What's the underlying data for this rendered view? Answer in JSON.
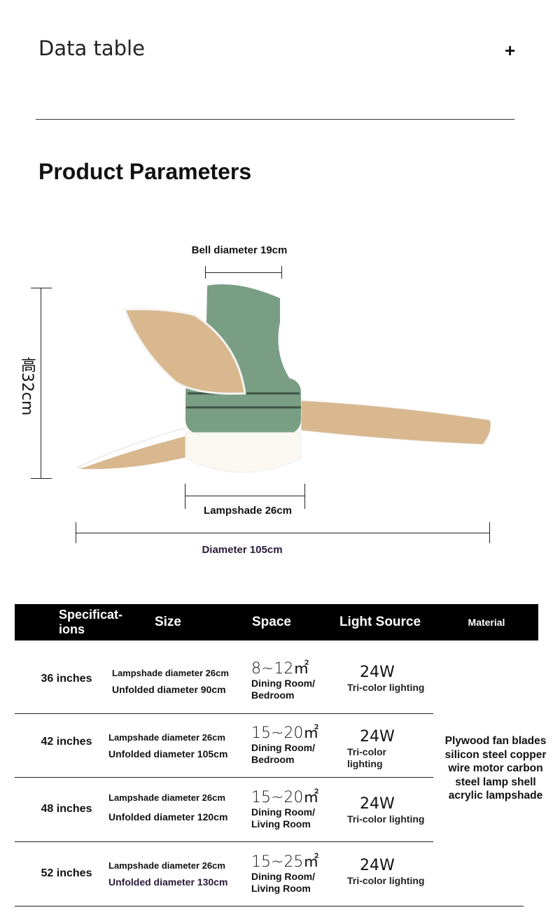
{
  "header": {
    "title": "Data table",
    "expand_icon": "plus-icon"
  },
  "section": {
    "title": "Product Parameters"
  },
  "diagram": {
    "bell": "Bell diameter 19cm",
    "height": "高32cm",
    "lampshade": "Lampshade 26cm",
    "diameter": "Diameter 105cm",
    "colors": {
      "body": "#7a9e84",
      "blade": "#d9b88f",
      "shade": "#fbf8f2",
      "diameter_label": "#2a1a3a"
    }
  },
  "table": {
    "headers": [
      "Specificat-\nions",
      "Size",
      "Space",
      "Light Source",
      "Material"
    ],
    "rows": [
      {
        "spec": "36 inches",
        "lamp": "Lampshade diameter 26cm",
        "unfolded": "Unfolded diameter 90cm",
        "area": "8~12㎡",
        "room": "Dining Room/ Bedroom",
        "watt": "24W",
        "light": "Tri-color lighting"
      },
      {
        "spec": "42 inches",
        "lamp": "Lampshade diameter 26cm",
        "unfolded": "Unfolded diameter 105cm",
        "area": "15~20㎡",
        "room": "Dining Room/ Bedroom",
        "watt": "24W",
        "light": "Tri-color lighting"
      },
      {
        "spec": "48 inches",
        "lamp": "Lampshade diameter 26cm",
        "unfolded": "Unfolded diameter 120cm",
        "area": "15~20㎡",
        "room": "Dining Room/ Living Room",
        "watt": "24W",
        "light": "Tri-color lighting"
      },
      {
        "spec": "52 inches",
        "lamp": "Lampshade diameter 26cm",
        "unfolded": "Unfolded diameter 130cm",
        "area": "15~25㎡",
        "room": "Dining Room/ Living Room",
        "watt": "24W",
        "light": "Tri-color lighting"
      }
    ],
    "material": "Plywood fan blades silicon steel copper wire motor carbon steel lamp shell acrylic lampshade"
  }
}
